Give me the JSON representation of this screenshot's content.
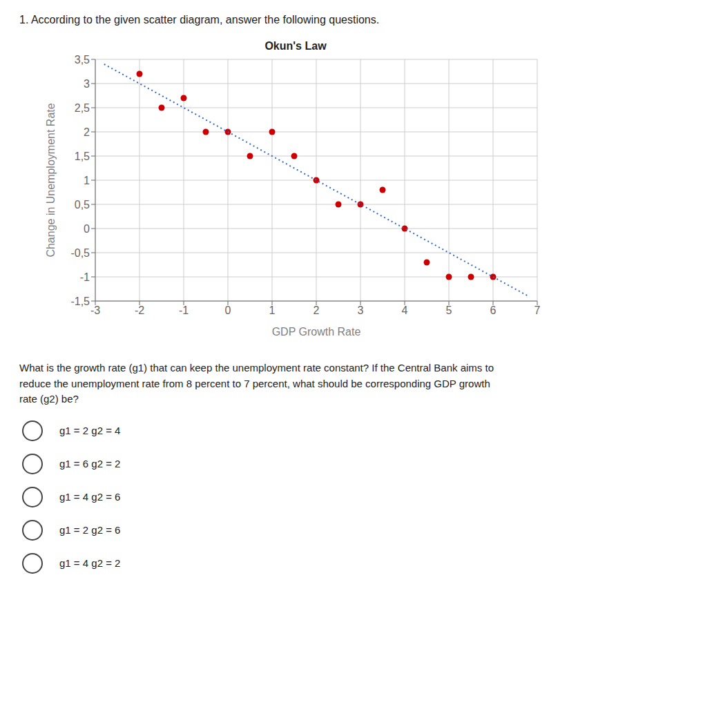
{
  "chart_data": {
    "type": "scatter",
    "title": "Okun's Law",
    "xlabel": "GDP Growth Rate",
    "ylabel": "Change in Unemployment Rate",
    "header": "1.   According to the given scatter diagram, answer the following questions.",
    "question": "What is the growth rate (g1) that can keep the unemployment rate constant? If the Central Bank aims to\nreduce the unemployment rate from 8 percent to 7 percent, what should be corresponding GDP growth\nrate (g2) be?",
    "options": [
      "g1 = 2 g2 = 4",
      "g1 = 6 g2 = 2",
      "g1 = 4 g2 = 6",
      "g1 = 2 g2 = 6",
      "g1 = 4 g2 = 2"
    ],
    "series": [
      {
        "type": "scatter",
        "color": "#cc0000",
        "marker": "circle",
        "x": [
          -2,
          -1.5,
          -1,
          -0.5,
          0,
          0.5,
          1,
          1.5,
          2,
          2.5,
          3,
          3.5,
          4,
          4.5,
          5,
          5.5,
          6
        ],
        "values": [
          3.2,
          2.5,
          2.7,
          2.0,
          2.0,
          1.5,
          2.0,
          1.5,
          1.0,
          0.5,
          0.5,
          0.8,
          0.0,
          -0.7,
          -1.0,
          -1.0,
          -1.0
        ]
      },
      {
        "type": "line",
        "color": "#3366cc",
        "line_style": "dotted",
        "x": [
          -2.8,
          6.8
        ],
        "values": [
          3.4,
          -1.4
        ]
      }
    ],
    "xlim": [
      -3,
      7
    ],
    "ylim": [
      -1.5,
      3.5
    ],
    "xticks": [
      -3,
      -2,
      -1,
      0,
      1,
      2,
      3,
      4,
      5,
      6,
      7
    ],
    "yticks": [
      {
        "value": -1.5,
        "label": "-1,5"
      },
      -1,
      {
        "value": -0.5,
        "label": "-0,5"
      },
      0,
      {
        "value": 0.5,
        "label": "0,5"
      },
      1,
      {
        "value": 1.5,
        "label": "1,5"
      },
      2,
      {
        "value": 2.5,
        "label": "2,5"
      },
      3,
      {
        "value": 3.5,
        "label": "3,5"
      }
    ],
    "grid": true
  }
}
